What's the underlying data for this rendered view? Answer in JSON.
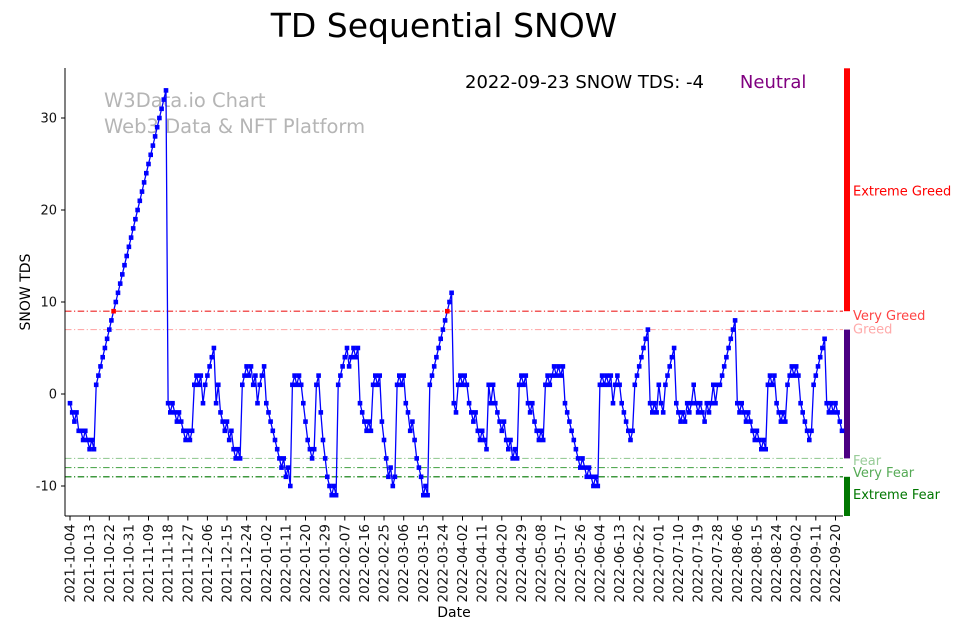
{
  "header": {
    "title": "TD Sequential SNOW"
  },
  "annotation": {
    "text": "2022-09-23 SNOW TDS: -4",
    "sentiment": "Neutral"
  },
  "watermark": {
    "line1": "W3Data.io Chart",
    "line2": "Web3 Data & NFT Platform"
  },
  "axes": {
    "x_label": "Date",
    "y_label": "SNOW TDS"
  },
  "colors": {
    "series": "#0000ff",
    "signal": "#ff0000",
    "sentiment": "#800080",
    "watermark": "#b5b5b5",
    "axis": "#000000"
  },
  "chart_data": {
    "type": "line",
    "title": "TD Sequential SNOW",
    "xlabel": "Date",
    "ylabel": "SNOW TDS",
    "x_start_date": "2021-10-04",
    "x_end_date": "2022-09-23",
    "x_tick_step_days": 9,
    "x_tick_labels": [
      "2021-10-04",
      "2021-10-13",
      "2021-10-22",
      "2021-10-31",
      "2021-11-09",
      "2021-11-18",
      "2021-11-27",
      "2021-12-06",
      "2021-12-15",
      "2021-12-24",
      "2022-01-02",
      "2022-01-11",
      "2022-01-20",
      "2022-01-29",
      "2022-02-07",
      "2022-02-16",
      "2022-02-25",
      "2022-03-06",
      "2022-03-15",
      "2022-03-24",
      "2022-04-02",
      "2022-04-11",
      "2022-04-20",
      "2022-04-29",
      "2022-05-08",
      "2022-05-17",
      "2022-05-26",
      "2022-06-04",
      "2022-06-13",
      "2022-06-22",
      "2022-07-01",
      "2022-07-10",
      "2022-07-19",
      "2022-07-28",
      "2022-08-06",
      "2022-08-15",
      "2022-08-24",
      "2022-09-02",
      "2022-09-11",
      "2022-09-20"
    ],
    "y_ticks": [
      -10,
      0,
      10,
      20,
      30
    ],
    "ylim": [
      -13.4,
      35.4
    ],
    "legend": "off",
    "grid": "off",
    "series": [
      {
        "name": "SNOW TDS",
        "color": "#0000ff",
        "marker": "square",
        "values": [
          -1,
          -2,
          -3,
          -2,
          -4,
          -4,
          -5,
          -4,
          -5,
          -6,
          -5,
          -6,
          1,
          2,
          3,
          4,
          5,
          6,
          7,
          8,
          9,
          10,
          11,
          12,
          13,
          14,
          15,
          16,
          17,
          18,
          19,
          20,
          21,
          22,
          23,
          24,
          25,
          26,
          27,
          28,
          29,
          30,
          31,
          32,
          33,
          -1,
          -2,
          -1,
          -2,
          -3,
          -2,
          -3,
          -4,
          -5,
          -4,
          -5,
          -4,
          1,
          2,
          1,
          2,
          -1,
          1,
          2,
          3,
          4,
          5,
          -1,
          1,
          -2,
          -3,
          -4,
          -3,
          -5,
          -4,
          -6,
          -7,
          -6,
          -7,
          1,
          2,
          3,
          2,
          3,
          1,
          2,
          -1,
          1,
          2,
          3,
          -1,
          -2,
          -3,
          -4,
          -5,
          -6,
          -7,
          -8,
          -7,
          -9,
          -8,
          -10,
          1,
          2,
          1,
          2,
          1,
          -1,
          -3,
          -5,
          -6,
          -7,
          -6,
          1,
          2,
          -2,
          -5,
          -7,
          -9,
          -10,
          -11,
          -10,
          -11,
          1,
          2,
          3,
          4,
          5,
          3,
          4,
          5,
          4,
          5,
          -1,
          -2,
          -3,
          -4,
          -3,
          -4,
          1,
          2,
          1,
          2,
          -3,
          -5,
          -7,
          -9,
          -8,
          -10,
          -9,
          1,
          2,
          1,
          2,
          -1,
          -2,
          -4,
          -3,
          -5,
          -7,
          -8,
          -9,
          -11,
          -10,
          -11,
          1,
          2,
          3,
          4,
          5,
          6,
          7,
          8,
          9,
          10,
          11,
          -1,
          -2,
          1,
          2,
          1,
          2,
          1,
          -1,
          -2,
          -3,
          -2,
          -4,
          -5,
          -4,
          -5,
          -6,
          1,
          -1,
          1,
          -1,
          -2,
          -3,
          -4,
          -3,
          -5,
          -6,
          -5,
          -7,
          -6,
          -7,
          1,
          2,
          1,
          2,
          -1,
          -2,
          -1,
          -3,
          -4,
          -5,
          -4,
          -5,
          1,
          2,
          1,
          2,
          3,
          2,
          3,
          2,
          3,
          -1,
          -2,
          -3,
          -4,
          -5,
          -6,
          -7,
          -8,
          -7,
          -8,
          -9,
          -8,
          -9,
          -10,
          -9,
          -10,
          1,
          2,
          1,
          2,
          1,
          2,
          -1,
          1,
          2,
          1,
          -1,
          -2,
          -3,
          -4,
          -5,
          -4,
          1,
          2,
          3,
          4,
          5,
          6,
          7,
          -1,
          -2,
          -1,
          -2,
          1,
          -1,
          -2,
          1,
          2,
          3,
          4,
          5,
          -1,
          -2,
          -3,
          -2,
          -3,
          -1,
          -2,
          -1,
          1,
          -1,
          -2,
          -1,
          -2,
          -3,
          -1,
          -2,
          -1,
          1,
          -1,
          1,
          1,
          2,
          3,
          4,
          5,
          6,
          7,
          8,
          -1,
          -2,
          -1,
          -2,
          -3,
          -2,
          -3,
          -4,
          -5,
          -4,
          -5,
          -6,
          -5,
          -6,
          1,
          2,
          1,
          2,
          -1,
          -2,
          -3,
          -2,
          -3,
          1,
          2,
          3,
          2,
          3,
          2,
          -1,
          -2,
          -3,
          -4,
          -5,
          -4,
          1,
          2,
          3,
          4,
          5,
          6,
          -1,
          -2,
          -1,
          -2,
          -1,
          -2,
          -3,
          -4
        ]
      }
    ],
    "signal_marker": {
      "value": 9,
      "color": "#ff0000"
    },
    "threshold_lines": [
      {
        "value": 9,
        "color": "#ee2222"
      },
      {
        "value": 7,
        "color": "#ffaaaa"
      },
      {
        "value": -7,
        "color": "#99cc99"
      },
      {
        "value": -8,
        "color": "#55aa55"
      },
      {
        "value": -9,
        "color": "#007700"
      }
    ],
    "zone_bars": [
      {
        "from": 35.4,
        "to": 9,
        "color": "#ff0000"
      },
      {
        "from": 7,
        "to": -7,
        "color": "#4b0082"
      },
      {
        "from": -9,
        "to": -13.4,
        "color": "#007700"
      }
    ],
    "zone_labels": [
      {
        "text": "Extreme Greed",
        "color": "#ff0000",
        "at": 22
      },
      {
        "text": "Very Greed",
        "color": "#ff4444",
        "at": 8.5
      },
      {
        "text": "Greed",
        "color": "#ffaaaa",
        "at": 7.0
      },
      {
        "text": "Fear",
        "color": "#99cc99",
        "at": -7.3
      },
      {
        "text": "Very Fear",
        "color": "#55aa55",
        "at": -8.6
      },
      {
        "text": "Extreme Fear",
        "color": "#007700",
        "at": -11
      }
    ]
  }
}
